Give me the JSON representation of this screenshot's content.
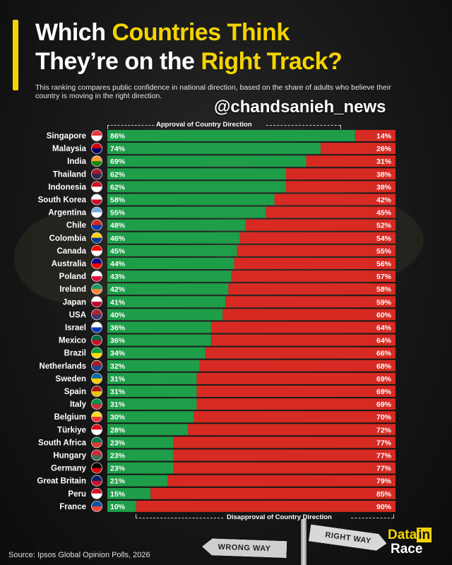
{
  "header": {
    "title_line1_plain": "Which ",
    "title_line1_highlight": "Countries Think",
    "title_line2_plain": "They’re on the ",
    "title_line2_highlight": "Right Track?",
    "subtitle": "This ranking compares public confidence in national direction, based on the share of adults who believe their country is moving in the right direction.",
    "handle": "@chandsanieh_news"
  },
  "colors": {
    "approval": "#1f9e4a",
    "disapproval": "#d62a22",
    "accent": "#f4d400"
  },
  "chart_data": {
    "type": "bar",
    "orientation": "horizontal-stacked",
    "top_label": "Approval of Country Direction",
    "bottom_label": "Disapproval of Country Direction",
    "categories": [
      "Singapore",
      "Malaysia",
      "India",
      "Thailand",
      "Indonesia",
      "South Korea",
      "Argentina",
      "Chile",
      "Colombia",
      "Canada",
      "Australia",
      "Poland",
      "Ireland",
      "Japan",
      "USA",
      "Israel",
      "Mexico",
      "Brazil",
      "Netherlands",
      "Sweden",
      "Spain",
      "Italy",
      "Belgium",
      "Türkiye",
      "South Africa",
      "Hungary",
      "Germany",
      "Great Britain",
      "Peru",
      "France"
    ],
    "series": [
      {
        "values": [
          86,
          74,
          69,
          62,
          62,
          58,
          55,
          48,
          46,
          45,
          44,
          43,
          42,
          41,
          40,
          36,
          36,
          34,
          32,
          31,
          31,
          31,
          30,
          28,
          23,
          23,
          23,
          21,
          15,
          10
        ]
      },
      {
        "values": [
          14,
          26,
          31,
          38,
          38,
          42,
          45,
          52,
          54,
          55,
          56,
          57,
          58,
          59,
          60,
          64,
          64,
          66,
          68,
          69,
          69,
          69,
          70,
          72,
          77,
          77,
          77,
          79,
          85,
          90
        ]
      }
    ],
    "value_suffix": "%",
    "xlim": [
      0,
      100
    ]
  },
  "flags": [
    "singapore-flag",
    "malaysia-flag",
    "india-flag",
    "thailand-flag",
    "indonesia-flag",
    "south-korea-flag",
    "argentina-flag",
    "chile-flag",
    "colombia-flag",
    "canada-flag",
    "australia-flag",
    "poland-flag",
    "ireland-flag",
    "japan-flag",
    "usa-flag",
    "israel-flag",
    "mexico-flag",
    "brazil-flag",
    "netherlands-flag",
    "sweden-flag",
    "spain-flag",
    "italy-flag",
    "belgium-flag",
    "turkiye-flag",
    "south-africa-flag",
    "hungary-flag",
    "germany-flag",
    "great-britain-flag",
    "peru-flag",
    "france-flag"
  ],
  "footer": {
    "source": "Source: Ipsos Global Opinion Polls, 2026",
    "sign_wrong": "WRONG WAY",
    "sign_right": "RIGHT WAY",
    "logo_top": "Data",
    "logo_top_box": "in",
    "logo_bottom": "Race"
  }
}
